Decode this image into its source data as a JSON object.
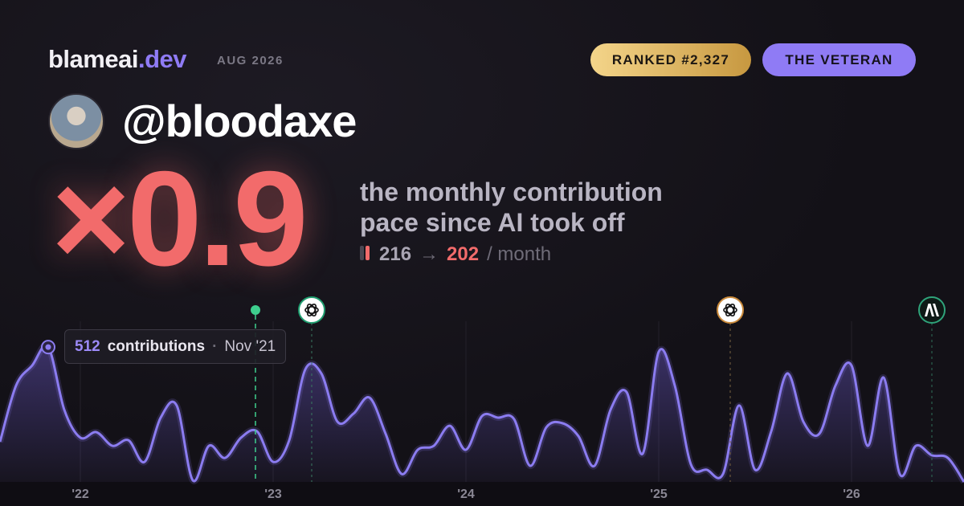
{
  "header": {
    "site": "blameai",
    "site_tld": ".dev",
    "date": "AUG 2026",
    "rank_badge": "RANKED #2,327",
    "title_badge": "THE VETERAN"
  },
  "user": {
    "handle": "@bloodaxe"
  },
  "stat": {
    "multiplier": "×0.9",
    "description": [
      "the monthly contribution",
      "pace since AI took off"
    ],
    "before": 216,
    "arrow": "→",
    "after": 202,
    "unit": "/ month"
  },
  "chart_data": {
    "type": "area",
    "categories": [
      null,
      null,
      null,
      null,
      null,
      "'22",
      null,
      null,
      null,
      null,
      null,
      null,
      null,
      null,
      null,
      null,
      null,
      "'23",
      null,
      null,
      null,
      null,
      null,
      null,
      null,
      null,
      null,
      null,
      null,
      "'24",
      null,
      null,
      null,
      null,
      null,
      null,
      null,
      null,
      null,
      null,
      null,
      "'25",
      null,
      null,
      null,
      null,
      null,
      null,
      null,
      null,
      null,
      null,
      null,
      "'26",
      null,
      null,
      null,
      null,
      null,
      null,
      null
    ],
    "series": [
      {
        "color": "#8b7cf0",
        "values": [
          152,
          366,
          442,
          512,
          274,
          168,
          189,
          137,
          158,
          76,
          244,
          290,
          6,
          137,
          91,
          168,
          192,
          76,
          158,
          427,
          412,
          229,
          259,
          320,
          183,
          30,
          122,
          137,
          213,
          122,
          250,
          244,
          238,
          61,
          207,
          223,
          174,
          61,
          274,
          341,
          107,
          494,
          366,
          67,
          46,
          30,
          290,
          46,
          192,
          412,
          229,
          183,
          366,
          442,
          137,
          396,
          30,
          137,
          101,
          91,
          0
        ]
      }
    ],
    "ylim": [
      0,
      610
    ],
    "tooltip": {
      "value": 512,
      "label": "contributions",
      "separator": "·",
      "date": "Nov '21"
    }
  }
}
